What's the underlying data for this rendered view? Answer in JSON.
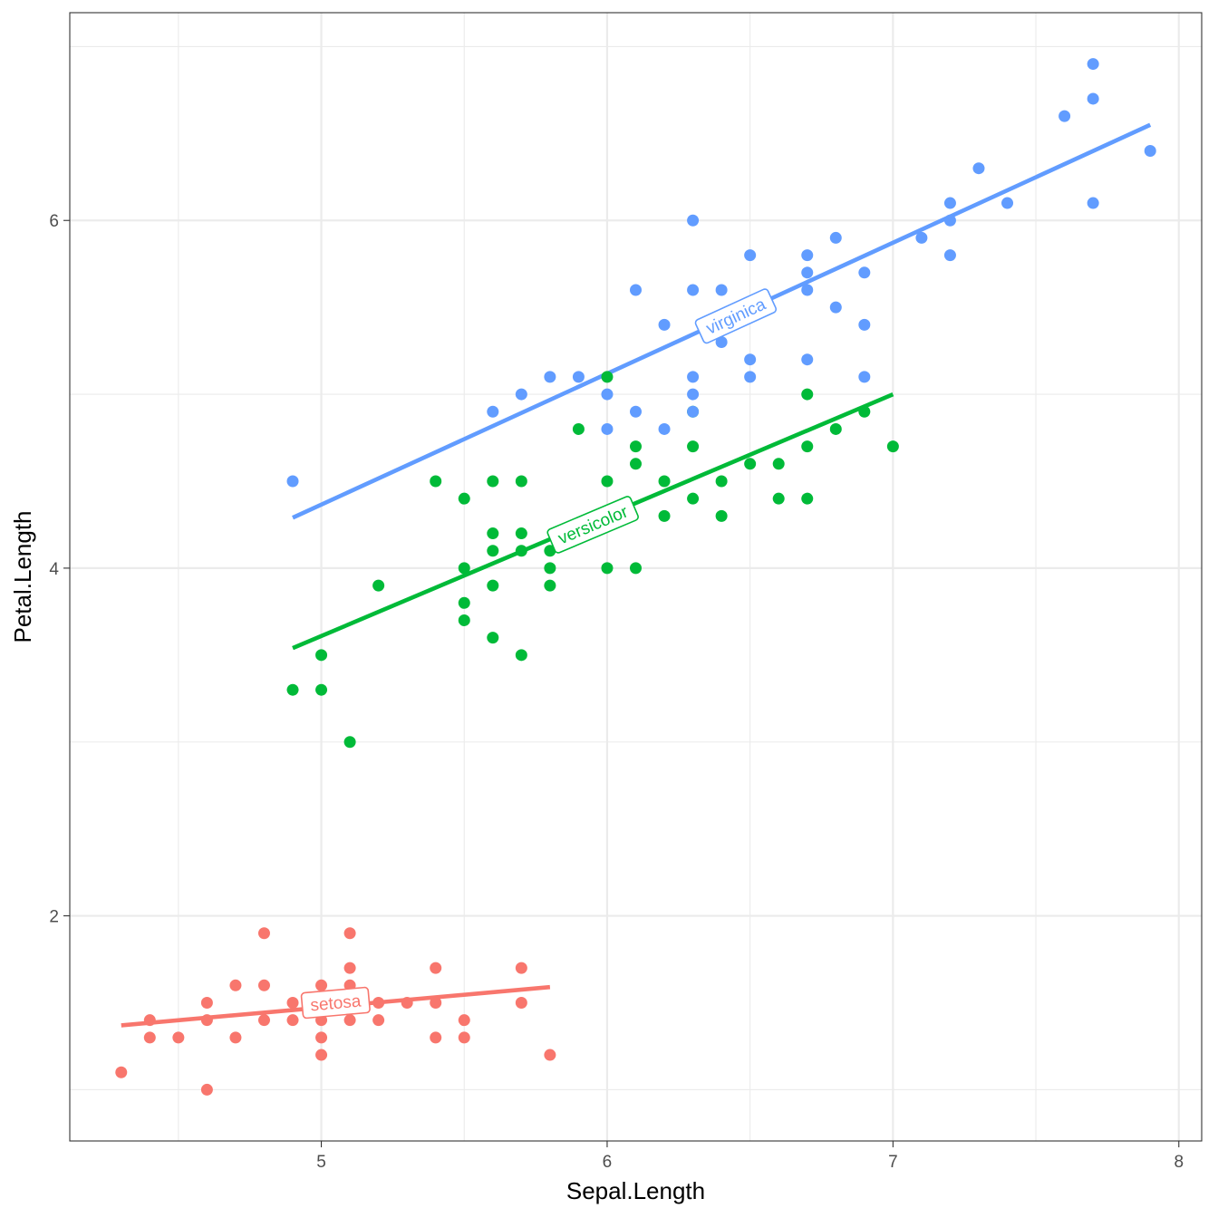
{
  "chart_data": {
    "type": "scatter",
    "xlabel": "Sepal.Length",
    "ylabel": "Petal.Length",
    "xlim": [
      4.12,
      8.08
    ],
    "ylim": [
      0.705,
      7.195
    ],
    "x_ticks": [
      5,
      6,
      7,
      8
    ],
    "y_ticks": [
      2,
      4,
      6
    ],
    "grid": true,
    "legend": "none",
    "series": [
      {
        "name": "setosa",
        "color": "#F8766D",
        "points": [
          [
            4.3,
            1.1
          ],
          [
            4.4,
            1.3
          ],
          [
            4.4,
            1.4
          ],
          [
            4.5,
            1.3
          ],
          [
            4.6,
            1.0
          ],
          [
            4.6,
            1.4
          ],
          [
            4.6,
            1.5
          ],
          [
            4.7,
            1.3
          ],
          [
            4.7,
            1.6
          ],
          [
            4.8,
            1.4
          ],
          [
            4.8,
            1.6
          ],
          [
            4.8,
            1.9
          ],
          [
            4.9,
            1.4
          ],
          [
            4.9,
            1.5
          ],
          [
            5.0,
            1.2
          ],
          [
            5.0,
            1.3
          ],
          [
            5.0,
            1.4
          ],
          [
            5.0,
            1.5
          ],
          [
            5.0,
            1.6
          ],
          [
            5.1,
            1.4
          ],
          [
            5.1,
            1.5
          ],
          [
            5.1,
            1.6
          ],
          [
            5.1,
            1.7
          ],
          [
            5.1,
            1.9
          ],
          [
            5.2,
            1.4
          ],
          [
            5.2,
            1.5
          ],
          [
            5.3,
            1.5
          ],
          [
            5.4,
            1.3
          ],
          [
            5.4,
            1.5
          ],
          [
            5.4,
            1.7
          ],
          [
            5.5,
            1.3
          ],
          [
            5.5,
            1.4
          ],
          [
            5.7,
            1.5
          ],
          [
            5.7,
            1.7
          ],
          [
            5.8,
            1.2
          ]
        ],
        "fit": {
          "x": [
            4.3,
            5.8
          ],
          "y": [
            1.37,
            1.59
          ]
        }
      },
      {
        "name": "versicolor",
        "color": "#00BA38",
        "points": [
          [
            4.9,
            3.3
          ],
          [
            5.0,
            3.3
          ],
          [
            5.0,
            3.5
          ],
          [
            5.1,
            3.0
          ],
          [
            5.2,
            3.9
          ],
          [
            5.4,
            4.5
          ],
          [
            5.5,
            3.7
          ],
          [
            5.5,
            3.8
          ],
          [
            5.5,
            4.0
          ],
          [
            5.5,
            4.4
          ],
          [
            5.6,
            3.6
          ],
          [
            5.6,
            3.9
          ],
          [
            5.6,
            4.1
          ],
          [
            5.6,
            4.2
          ],
          [
            5.6,
            4.5
          ],
          [
            5.7,
            3.5
          ],
          [
            5.7,
            4.1
          ],
          [
            5.7,
            4.2
          ],
          [
            5.7,
            4.5
          ],
          [
            5.8,
            3.9
          ],
          [
            5.8,
            4.0
          ],
          [
            5.8,
            4.1
          ],
          [
            5.9,
            4.2
          ],
          [
            5.9,
            4.8
          ],
          [
            6.0,
            4.0
          ],
          [
            6.0,
            4.5
          ],
          [
            6.0,
            5.1
          ],
          [
            6.1,
            4.0
          ],
          [
            6.1,
            4.6
          ],
          [
            6.1,
            4.7
          ],
          [
            6.2,
            4.3
          ],
          [
            6.2,
            4.5
          ],
          [
            6.3,
            4.4
          ],
          [
            6.3,
            4.7
          ],
          [
            6.3,
            4.9
          ],
          [
            6.4,
            4.3
          ],
          [
            6.4,
            4.5
          ],
          [
            6.5,
            4.6
          ],
          [
            6.6,
            4.4
          ],
          [
            6.6,
            4.6
          ],
          [
            6.7,
            4.4
          ],
          [
            6.7,
            4.7
          ],
          [
            6.7,
            5.0
          ],
          [
            6.8,
            4.8
          ],
          [
            6.9,
            4.9
          ],
          [
            7.0,
            4.7
          ]
        ],
        "fit": {
          "x": [
            4.9,
            7.0
          ],
          "y": [
            3.54,
            5.0
          ]
        }
      },
      {
        "name": "virginica",
        "color": "#619CFF",
        "points": [
          [
            4.9,
            4.5
          ],
          [
            5.6,
            4.9
          ],
          [
            5.7,
            5.0
          ],
          [
            5.8,
            5.1
          ],
          [
            5.9,
            5.1
          ],
          [
            6.0,
            4.8
          ],
          [
            6.0,
            5.0
          ],
          [
            6.1,
            4.9
          ],
          [
            6.1,
            5.6
          ],
          [
            6.2,
            4.8
          ],
          [
            6.2,
            5.4
          ],
          [
            6.3,
            4.9
          ],
          [
            6.3,
            5.0
          ],
          [
            6.3,
            5.1
          ],
          [
            6.3,
            5.6
          ],
          [
            6.3,
            6.0
          ],
          [
            6.4,
            5.3
          ],
          [
            6.4,
            5.6
          ],
          [
            6.5,
            5.1
          ],
          [
            6.5,
            5.2
          ],
          [
            6.5,
            5.8
          ],
          [
            6.7,
            5.2
          ],
          [
            6.7,
            5.6
          ],
          [
            6.7,
            5.7
          ],
          [
            6.7,
            5.8
          ],
          [
            6.8,
            5.5
          ],
          [
            6.8,
            5.9
          ],
          [
            6.9,
            5.1
          ],
          [
            6.9,
            5.4
          ],
          [
            6.9,
            5.7
          ],
          [
            7.1,
            5.9
          ],
          [
            7.2,
            5.8
          ],
          [
            7.2,
            6.0
          ],
          [
            7.2,
            6.1
          ],
          [
            7.3,
            6.3
          ],
          [
            7.4,
            6.1
          ],
          [
            7.6,
            6.6
          ],
          [
            7.7,
            6.1
          ],
          [
            7.7,
            6.7
          ],
          [
            7.7,
            6.9
          ],
          [
            7.9,
            6.4
          ]
        ],
        "fit": {
          "x": [
            4.9,
            7.9
          ],
          "y": [
            4.29,
            6.55
          ]
        }
      }
    ],
    "annotations": [
      {
        "series": "setosa",
        "text": "setosa",
        "x": 5.05,
        "y": 1.5
      },
      {
        "series": "versicolor",
        "text": "versicolor",
        "x": 5.95,
        "y": 4.25
      },
      {
        "series": "virginica",
        "text": "virginica",
        "x": 6.45,
        "y": 5.45
      }
    ]
  }
}
